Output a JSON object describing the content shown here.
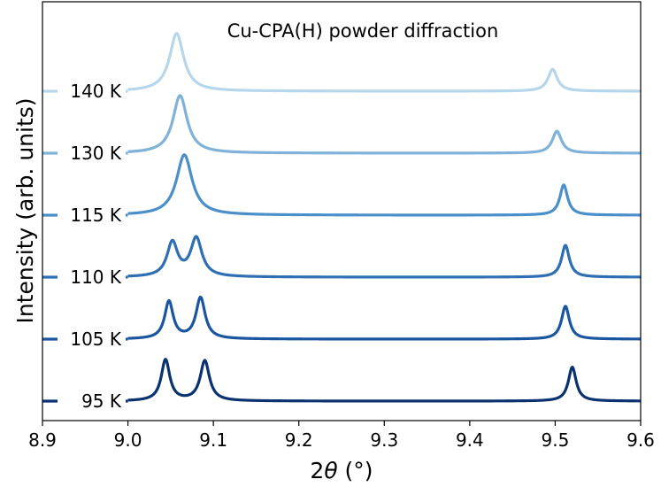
{
  "chart_data": {
    "type": "line",
    "title": "Cu-CPA(H) powder diffraction",
    "xlabel_prefix": "2",
    "xlabel_symbol": "θ",
    "xlabel_suffix": " (°)",
    "ylabel": "Intensity (arb. units)",
    "xlim": [
      8.9,
      9.6
    ],
    "x_ticks": [
      "8.9",
      "9.0",
      "9.1",
      "9.2",
      "9.3",
      "9.4",
      "9.5",
      "9.6"
    ],
    "y_ticks_visible": false,
    "grid": false,
    "legend": "none",
    "series": [
      {
        "name": "95 K",
        "color": "#0b3270",
        "offset": 0,
        "peaks": [
          {
            "center": 9.044,
            "height": 0.75,
            "width": 0.006
          },
          {
            "center": 9.09,
            "height": 0.73,
            "width": 0.0065
          },
          {
            "center": 9.52,
            "height": 0.62,
            "width": 0.0055
          }
        ]
      },
      {
        "name": "105 K",
        "color": "#1a55a0",
        "offset": 1,
        "peaks": [
          {
            "center": 9.048,
            "height": 0.68,
            "width": 0.006
          },
          {
            "center": 9.085,
            "height": 0.75,
            "width": 0.0065
          },
          {
            "center": 9.512,
            "height": 0.6,
            "width": 0.0055
          }
        ]
      },
      {
        "name": "110 K",
        "color": "#2e6fb3",
        "offset": 2,
        "peaks": [
          {
            "center": 9.052,
            "height": 0.62,
            "width": 0.0075
          },
          {
            "center": 9.08,
            "height": 0.7,
            "width": 0.008
          },
          {
            "center": 9.512,
            "height": 0.58,
            "width": 0.0055
          }
        ]
      },
      {
        "name": "115 K",
        "color": "#4a8fca",
        "offset": 3,
        "peaks": [
          {
            "center": 9.066,
            "height": 1.1,
            "width": 0.011
          },
          {
            "center": 9.51,
            "height": 0.55,
            "width": 0.0055
          }
        ]
      },
      {
        "name": "130 K",
        "color": "#7fb2d8",
        "offset": 4,
        "peaks": [
          {
            "center": 9.061,
            "height": 1.05,
            "width": 0.01
          },
          {
            "center": 9.502,
            "height": 0.4,
            "width": 0.0065
          }
        ]
      },
      {
        "name": "140 K",
        "color": "#b6d6ec",
        "offset": 5,
        "peaks": [
          {
            "center": 9.057,
            "height": 1.05,
            "width": 0.01
          },
          {
            "center": 9.497,
            "height": 0.4,
            "width": 0.0065
          }
        ]
      }
    ]
  }
}
